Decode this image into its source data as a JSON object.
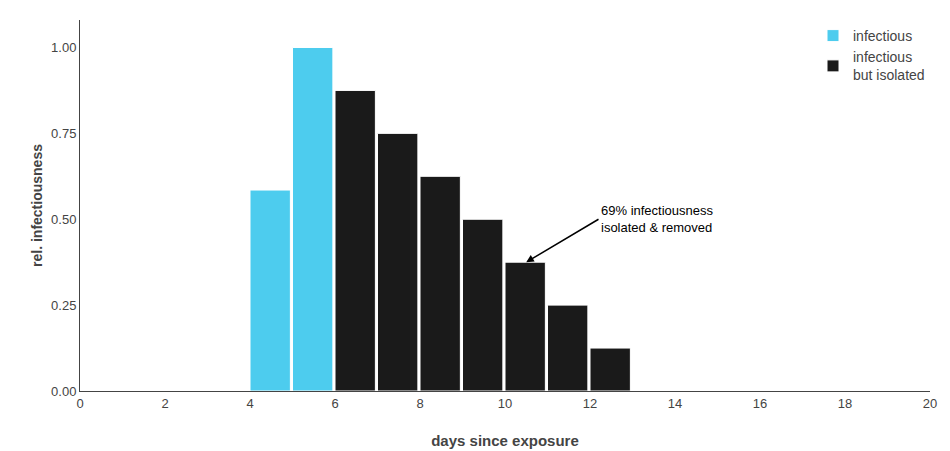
{
  "chart_data": {
    "type": "bar",
    "xlabel": "days since exposure",
    "ylabel": "rel. infectiousness",
    "x": [
      4,
      5,
      6,
      7,
      8,
      9,
      10,
      11,
      12
    ],
    "series": [
      {
        "name": "infectious",
        "color": "#4DCCEE",
        "values": [
          0.585,
          1.0,
          null,
          null,
          null,
          null,
          null,
          null,
          null
        ]
      },
      {
        "name": "infectious\nbut isolated",
        "color": "#1a1a1a",
        "values": [
          null,
          null,
          0.875,
          0.75,
          0.625,
          0.5,
          0.375,
          0.25,
          0.125
        ]
      }
    ],
    "xlim": [
      0,
      20
    ],
    "ylim": [
      0,
      1.08
    ],
    "xticks": [
      0,
      2,
      4,
      6,
      8,
      10,
      12,
      14,
      16,
      18,
      20
    ],
    "yticks": [
      {
        "value": 0,
        "label": "0.00"
      },
      0.25,
      {
        "value": 0.5,
        "label": "0.50"
      },
      0.75,
      {
        "value": 1,
        "label": "1.00"
      }
    ],
    "annotations": [
      {
        "text": "69% infectiousness\nisolated & removed",
        "x": 10.5,
        "y": 0.375,
        "text_x": 12.2,
        "text_y": 0.5
      }
    ],
    "legend": "upper right",
    "grid": false
  }
}
